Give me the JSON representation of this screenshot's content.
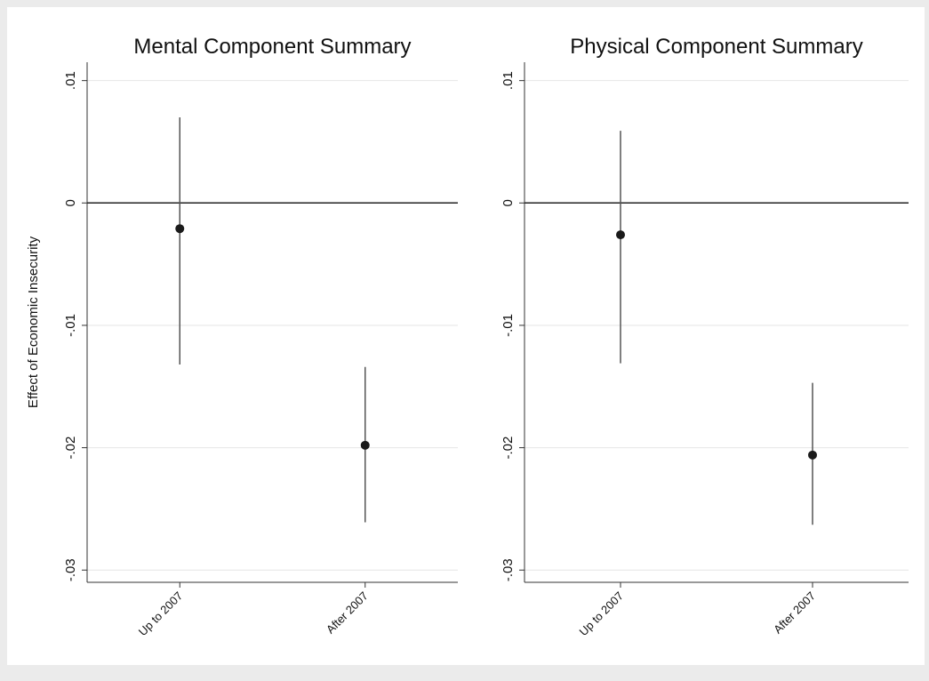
{
  "chart_data": [
    {
      "type": "errorbar",
      "title": "Mental Component Summary",
      "y_label": "Effect of Economic Insecurity",
      "categories": [
        "Up to 2007",
        "After 2007"
      ],
      "values": [
        -0.0021,
        -0.0198
      ],
      "lower": [
        -0.0132,
        -0.0261
      ],
      "upper": [
        0.007,
        -0.0134
      ],
      "color": "#1a1a1a",
      "hline": 0,
      "ylim": [
        -0.031,
        0.0115
      ],
      "yticks": [
        {
          "value": 0.01,
          "label": ".01"
        },
        0,
        {
          "value": -0.01,
          "label": "-.01"
        },
        {
          "value": -0.02,
          "label": "-.02"
        },
        {
          "value": -0.03,
          "label": "-.03"
        }
      ],
      "grid": true
    },
    {
      "type": "errorbar",
      "title": "Physical Component Summary",
      "categories": [
        "Up to 2007",
        "After 2007"
      ],
      "values": [
        -0.0026,
        -0.0206
      ],
      "lower": [
        -0.0131,
        -0.0263
      ],
      "upper": [
        0.0059,
        -0.0147
      ],
      "color": "#1a1a1a",
      "hline": 0,
      "ylim": [
        -0.031,
        0.0115
      ],
      "yticks": [
        {
          "value": 0.01,
          "label": ".01"
        },
        0,
        {
          "value": -0.01,
          "label": "-.01"
        },
        {
          "value": -0.02,
          "label": "-.02"
        },
        {
          "value": -0.03,
          "label": "-.03"
        }
      ],
      "grid": true
    }
  ]
}
